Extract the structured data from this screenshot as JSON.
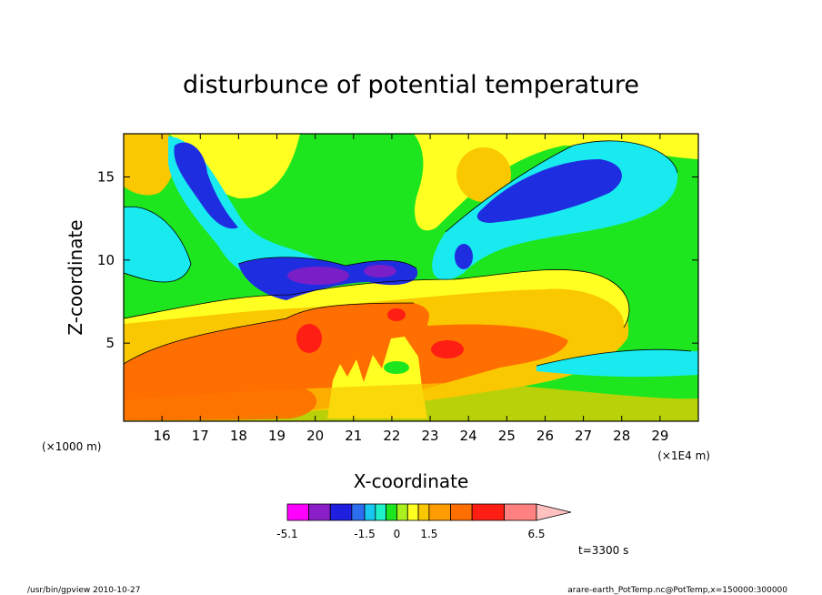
{
  "chart_data": {
    "type": "heatmap",
    "title": "disturbunce of potential temperature",
    "xlabel": "X-coordinate",
    "ylabel": "Z-coordinate",
    "x_scale_note": "(×1E4 m)",
    "y_scale_note": "(×1000 m)",
    "x_ticks": [
      "16",
      "17",
      "18",
      "19",
      "20",
      "21",
      "22",
      "23",
      "24",
      "25",
      "26",
      "27",
      "28",
      "29"
    ],
    "y_ticks": [
      "5",
      "10",
      "15"
    ],
    "xlim": [
      15.0,
      30.0
    ],
    "ylim": [
      0.3,
      17.6
    ],
    "grid": false,
    "colorbar": {
      "levels": [
        -5.1,
        -4.1,
        -3.1,
        -2.1,
        -1.5,
        -1.0,
        -0.5,
        0,
        0.5,
        1.0,
        1.5,
        2.5,
        3.5,
        5.0,
        6.5
      ],
      "tick_labels": [
        "-5.1",
        "-1.5",
        "0",
        "1.5",
        "6.5"
      ],
      "colors": [
        "#ff00ff",
        "#8a1fc8",
        "#1f1fe0",
        "#2d6ef0",
        "#19c8f0",
        "#1ef0c8",
        "#1ee61e",
        "#aaf01e",
        "#ffff22",
        "#fac800",
        "#ff9d00",
        "#ff6e00",
        "#ff1e14",
        "#ff8080",
        "#ffc0c0"
      ]
    },
    "annotation": "t=3300 s",
    "region_colors": {
      "neg_strong": "#7a1fc8",
      "neg_blue": "#1f2de0",
      "neg_mid": "#2d6ef0",
      "neg_cyan": "#19eaf0",
      "near_zero": "#1ee61e",
      "pos_yellow": "#ffff22",
      "pos_gold": "#fac800",
      "pos_orange": "#ff6e00",
      "pos_red": "#ff1e14"
    }
  },
  "footer": {
    "left": "/usr/bin/gpview   2010-10-27",
    "right": "arare-earth_PotTemp.nc@PotTemp,x=150000:300000"
  }
}
